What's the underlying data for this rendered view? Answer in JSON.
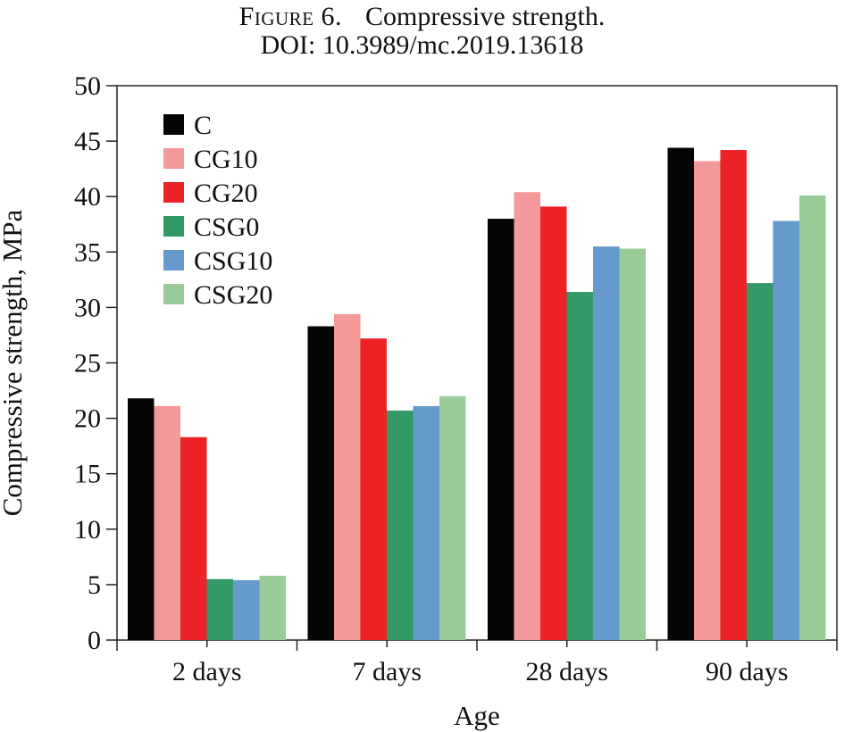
{
  "caption": {
    "figure_label": "Figure 6.",
    "title": "Compressive strength.",
    "doi": "DOI: 10.3989/mc.2019.13618"
  },
  "chart_data": {
    "type": "bar",
    "xlabel": "Age",
    "ylabel": "Compressive strength, MPa",
    "ylim": [
      0,
      50
    ],
    "yticks": [
      0,
      5,
      10,
      15,
      20,
      25,
      30,
      35,
      40,
      45,
      50
    ],
    "categories": [
      "2 days",
      "7 days",
      "28 days",
      "90 days"
    ],
    "legend_position": "top-left",
    "grid": false,
    "series": [
      {
        "name": "C",
        "color": "#050505",
        "values": [
          21.8,
          28.3,
          38.0,
          44.4
        ]
      },
      {
        "name": "CG10",
        "color": "#f4999a",
        "values": [
          21.1,
          29.4,
          40.4,
          43.2
        ]
      },
      {
        "name": "CG20",
        "color": "#ec2227",
        "values": [
          18.3,
          27.2,
          39.1,
          44.2
        ]
      },
      {
        "name": "CSG0",
        "color": "#339966",
        "values": [
          5.5,
          20.7,
          31.4,
          32.2
        ]
      },
      {
        "name": "CSG10",
        "color": "#6699cc",
        "values": [
          5.4,
          21.1,
          35.5,
          37.8
        ]
      },
      {
        "name": "CSG20",
        "color": "#99cc99",
        "values": [
          5.8,
          22.0,
          35.3,
          40.1
        ]
      }
    ]
  }
}
